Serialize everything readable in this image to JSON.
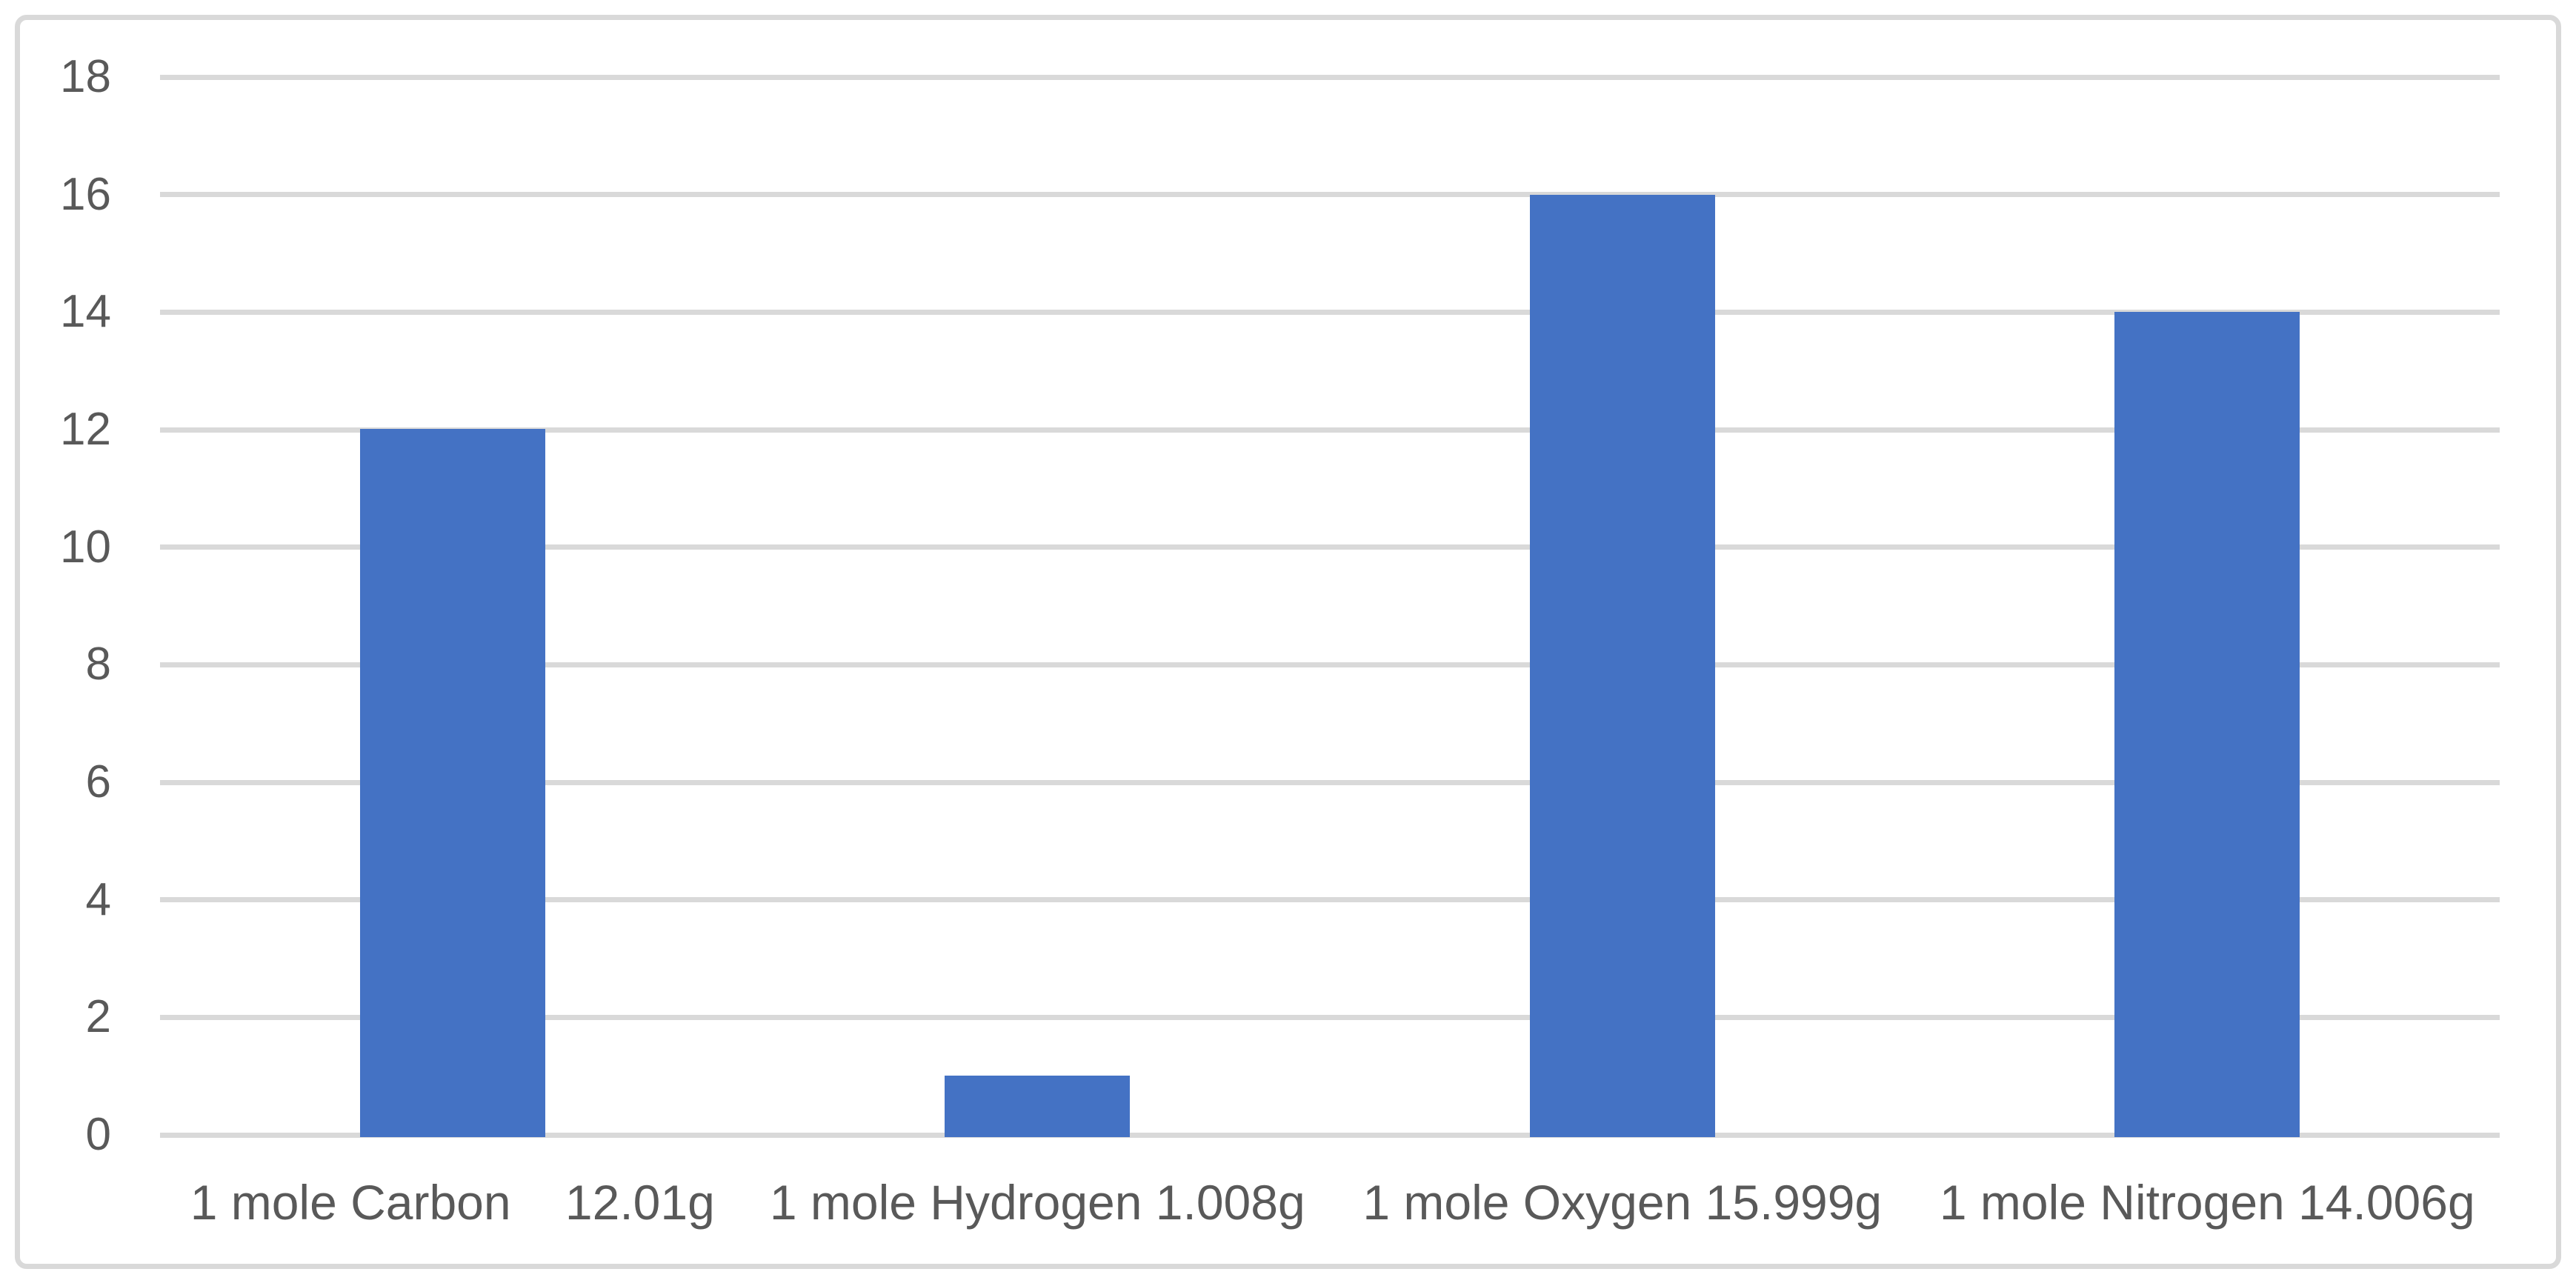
{
  "chart_data": {
    "type": "bar",
    "title": "",
    "xlabel": "",
    "ylabel": "",
    "categories": [
      "1 mole Carbon    12.01g",
      "1 mole Hydrogen 1.008g",
      "1 mole Oxygen 15.999g",
      "1 mole Nitrogen 14.006g"
    ],
    "values": [
      12.01,
      1.008,
      15.999,
      14.006
    ],
    "ylim": [
      0,
      18
    ],
    "ytick_step": 2,
    "ytick_labels": [
      "0",
      "2",
      "4",
      "6",
      "8",
      "10",
      "12",
      "14",
      "16",
      "18"
    ],
    "grid": true,
    "legend": false,
    "colors": {
      "bar": "#4472C4",
      "gridline": "#D9D9D9",
      "frame_border": "#D9D9D9",
      "axis_text": "#595959",
      "background": "#FFFFFF"
    }
  }
}
